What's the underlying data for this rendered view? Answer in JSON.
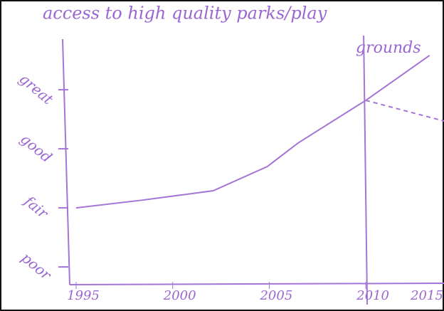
{
  "chart_data": {
    "type": "line",
    "title": [
      "access to high quality parks/play",
      "grounds"
    ],
    "x": [
      1995,
      1998.4,
      2002.1,
      2004.9,
      2006.5,
      2010,
      2013.3
    ],
    "series": [
      {
        "color": "#a474d6",
        "values": [
          1.0,
          1.13,
          1.29,
          1.7,
          2.1,
          2.82,
          3.58
        ]
      },
      {
        "color": "#a474d6",
        "dashed": true,
        "x": [
          2010,
          2014.05
        ],
        "values": [
          2.82,
          2.47
        ]
      }
    ],
    "xlim": [
      1994.3,
      2014.05
    ],
    "xticks": [
      1995,
      2000,
      2005,
      2010,
      2015
    ],
    "ylim": [
      -0.3,
      3.7
    ],
    "yticks": [
      {
        "value": 0,
        "label": "poor"
      },
      {
        "value": 1,
        "label": "fair"
      },
      {
        "value": 2,
        "label": "good"
      },
      {
        "value": 3,
        "label": "great"
      }
    ],
    "vline": 2010,
    "axis_color": "#a474d6"
  }
}
